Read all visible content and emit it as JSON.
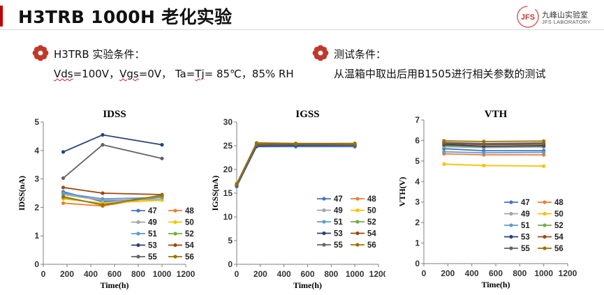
{
  "header": {
    "title": "H3TRB 1000H 老化实验"
  },
  "logo": {
    "mark": "JFS",
    "name": "九峰山实验室",
    "sub": "JFS LABORATORY"
  },
  "conditions": {
    "left_heading": "H3TRB 实验条件：",
    "left_body": {
      "vds": "Vds",
      "vds_rest": "=100V，",
      "vgs": "Vgs",
      "vgs_rest": "=0V，  Ta=",
      "tj": "Tj",
      "tj_rest": "= 85℃，85% RH"
    },
    "right_heading": "测试条件：",
    "right_body": "从温箱中取出后用B1505进行相关参数的测试"
  },
  "colors": {
    "accent": "#c00000",
    "47": "#4472c4",
    "48": "#ed7d31",
    "49": "#a5a5a5",
    "50": "#ffc000",
    "51": "#5b9bd5",
    "52": "#70ad47",
    "53": "#264478",
    "54": "#9e480e",
    "55": "#636363",
    "56": "#997300"
  },
  "chart_data": [
    {
      "type": "line",
      "title": "IDSS",
      "xlabel": "Time(h)",
      "ylabel": "IDSS(nA)",
      "xlim": [
        0,
        1200
      ],
      "ylim": [
        0,
        5
      ],
      "xticks": [
        0,
        200,
        400,
        600,
        800,
        1000,
        1200
      ],
      "yticks": [
        0,
        1,
        2,
        3,
        4,
        5
      ],
      "grid": false,
      "legend": "bottom-right",
      "x": [
        168,
        500,
        1000
      ],
      "series": [
        {
          "name": "47",
          "values": [
            2.55,
            2.2,
            2.35
          ]
        },
        {
          "name": "48",
          "values": [
            2.15,
            2.05,
            2.4
          ]
        },
        {
          "name": "49",
          "values": [
            2.45,
            2.25,
            2.28
          ]
        },
        {
          "name": "50",
          "values": [
            2.3,
            2.15,
            2.25
          ]
        },
        {
          "name": "51",
          "values": [
            2.5,
            2.3,
            2.35
          ]
        },
        {
          "name": "52",
          "values": [
            2.35,
            2.1,
            2.4
          ]
        },
        {
          "name": "53",
          "values": [
            3.95,
            4.55,
            4.2
          ]
        },
        {
          "name": "54",
          "values": [
            2.7,
            2.5,
            2.45
          ]
        },
        {
          "name": "55",
          "values": [
            3.03,
            4.2,
            3.72
          ]
        },
        {
          "name": "56",
          "values": [
            2.38,
            2.08,
            2.43
          ]
        }
      ]
    },
    {
      "type": "line",
      "title": "IGSS",
      "xlabel": "Time(h)",
      "ylabel": "IGSS(nA)",
      "xlim": [
        0,
        1200
      ],
      "ylim": [
        0,
        30
      ],
      "xticks": [
        0,
        200,
        400,
        600,
        800,
        1000,
        1200
      ],
      "yticks": [
        0,
        5,
        10,
        15,
        20,
        25,
        30
      ],
      "grid": false,
      "legend": "bottom-right",
      "x": [
        0,
        168,
        500,
        1000
      ],
      "series": [
        {
          "name": "47",
          "values": [
            16.5,
            25.0,
            24.9,
            25.0
          ]
        },
        {
          "name": "48",
          "values": [
            16.8,
            25.3,
            25.2,
            25.2
          ]
        },
        {
          "name": "49",
          "values": [
            16.6,
            25.2,
            25.1,
            25.1
          ]
        },
        {
          "name": "50",
          "values": [
            16.9,
            25.4,
            25.3,
            25.3
          ]
        },
        {
          "name": "51",
          "values": [
            16.4,
            24.8,
            24.8,
            24.8
          ]
        },
        {
          "name": "52",
          "values": [
            16.7,
            25.1,
            25.0,
            25.1
          ]
        },
        {
          "name": "53",
          "values": [
            16.5,
            24.9,
            25.0,
            25.0
          ]
        },
        {
          "name": "54",
          "values": [
            16.8,
            25.3,
            25.3,
            25.2
          ]
        },
        {
          "name": "55",
          "values": [
            16.6,
            25.1,
            25.2,
            25.1
          ]
        },
        {
          "name": "56",
          "values": [
            17.0,
            25.6,
            25.5,
            25.5
          ]
        }
      ]
    },
    {
      "type": "line",
      "title": "VTH",
      "xlabel": "Time(h)",
      "ylabel": "VTH(V)",
      "xlim": [
        0,
        1200
      ],
      "ylim": [
        0,
        7
      ],
      "xticks": [
        0,
        200,
        400,
        600,
        800,
        1000,
        1200
      ],
      "yticks": [
        0,
        1,
        2,
        3,
        4,
        5,
        6,
        7
      ],
      "grid": false,
      "legend": "bottom-right",
      "x": [
        168,
        500,
        1000
      ],
      "series": [
        {
          "name": "47",
          "values": [
            5.6,
            5.5,
            5.5
          ]
        },
        {
          "name": "48",
          "values": [
            5.35,
            5.3,
            5.3
          ]
        },
        {
          "name": "49",
          "values": [
            5.7,
            5.65,
            5.68
          ]
        },
        {
          "name": "50",
          "values": [
            4.85,
            4.78,
            4.75
          ]
        },
        {
          "name": "51",
          "values": [
            5.45,
            5.4,
            5.42
          ]
        },
        {
          "name": "52",
          "values": [
            5.75,
            5.7,
            5.72
          ]
        },
        {
          "name": "53",
          "values": [
            5.8,
            5.72,
            5.75
          ]
        },
        {
          "name": "54",
          "values": [
            5.85,
            5.8,
            5.82
          ]
        },
        {
          "name": "55",
          "values": [
            5.9,
            5.85,
            5.88
          ]
        },
        {
          "name": "56",
          "values": [
            5.98,
            5.95,
            5.97
          ]
        }
      ]
    }
  ]
}
